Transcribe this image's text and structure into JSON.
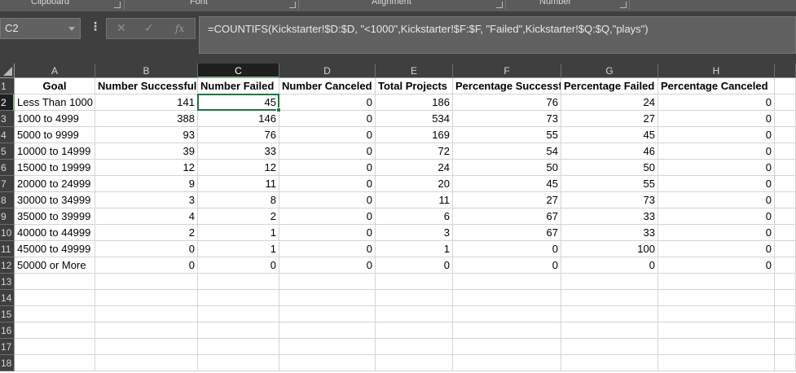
{
  "ribbon": {
    "groups": [
      {
        "label": "Clipboard"
      },
      {
        "label": "Font"
      },
      {
        "label": "Alignment"
      },
      {
        "label": "Number"
      }
    ]
  },
  "formula_bar": {
    "name_box": "C2",
    "cancel_glyph": "✕",
    "enter_glyph": "✓",
    "fx_label": "fx",
    "formula": "=COUNTIFS(Kickstarter!$D:$D, \"<1000\",Kickstarter!$F:$F, \"Failed\",Kickstarter!$Q:$Q,\"plays\")"
  },
  "sheet": {
    "active_cell": "C2",
    "columns": [
      "A",
      "B",
      "C",
      "D",
      "E",
      "F",
      "G",
      "H"
    ],
    "row_numbers": [
      "1",
      "2",
      "3",
      "4",
      "5",
      "6",
      "7",
      "8",
      "9",
      "10",
      "11",
      "12",
      "13",
      "14",
      "15",
      "16",
      "17",
      "18"
    ],
    "header_row": [
      "Goal",
      "Number Successful",
      "Number Failed",
      "Number Canceled",
      "Total Projects",
      "Percentage Successful",
      "Percentage Failed",
      "Percentage Canceled"
    ],
    "rows": [
      [
        "Less Than 1000",
        "141",
        "45",
        "0",
        "186",
        "76",
        "24",
        "0"
      ],
      [
        "1000 to 4999",
        "388",
        "146",
        "0",
        "534",
        "73",
        "27",
        "0"
      ],
      [
        "5000 to 9999",
        "93",
        "76",
        "0",
        "169",
        "55",
        "45",
        "0"
      ],
      [
        "10000 to 14999",
        "39",
        "33",
        "0",
        "72",
        "54",
        "46",
        "0"
      ],
      [
        "15000 to 19999",
        "12",
        "12",
        "0",
        "24",
        "50",
        "50",
        "0"
      ],
      [
        "20000 to 24999",
        "9",
        "11",
        "0",
        "20",
        "45",
        "55",
        "0"
      ],
      [
        "30000 to 34999",
        "3",
        "8",
        "0",
        "11",
        "27",
        "73",
        "0"
      ],
      [
        "35000 to 39999",
        "4",
        "2",
        "0",
        "6",
        "67",
        "33",
        "0"
      ],
      [
        "40000 to 44999",
        "2",
        "1",
        "0",
        "3",
        "67",
        "33",
        "0"
      ],
      [
        "45000 to 49999",
        "0",
        "1",
        "0",
        "1",
        "0",
        "100",
        "0"
      ],
      [
        "50000 or More",
        "0",
        "0",
        "0",
        "0",
        "0",
        "0",
        "0"
      ]
    ]
  },
  "colors": {
    "accent": "#217346",
    "header_bg": "#3f3f3f",
    "selected_header_bg": "#1f1f1f"
  }
}
